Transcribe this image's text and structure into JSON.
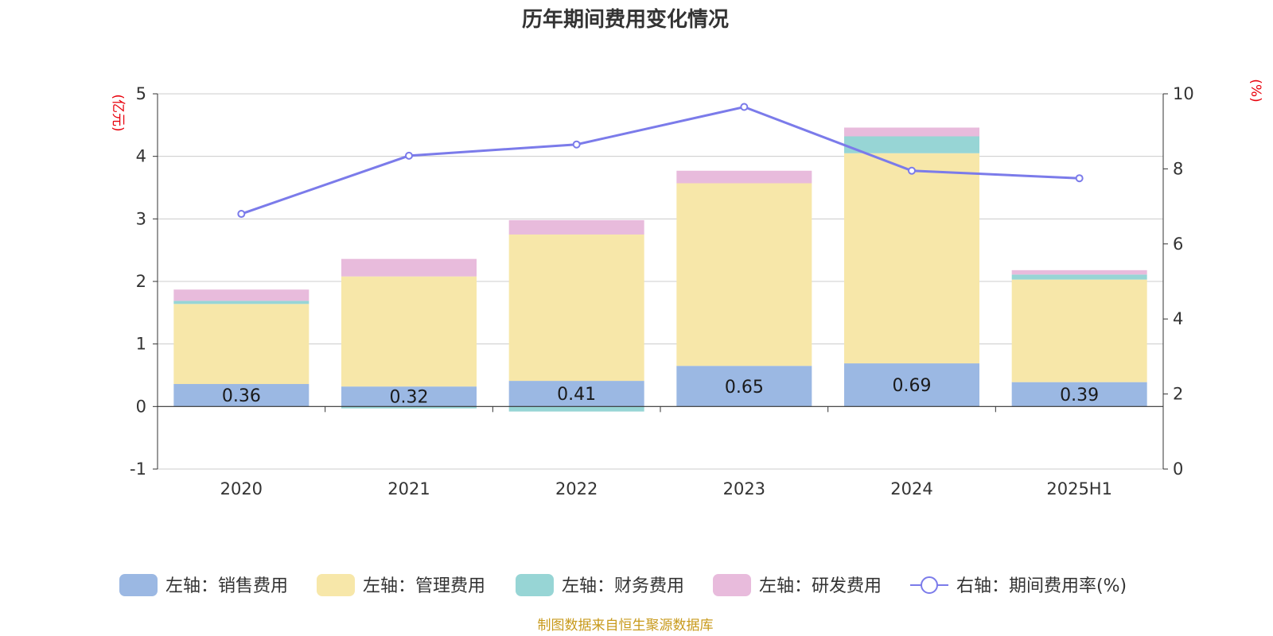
{
  "chart_data": {
    "type": "bar",
    "title": "历年期间费用变化情况",
    "categories": [
      "2020",
      "2021",
      "2022",
      "2023",
      "2024",
      "2025H1"
    ],
    "left_axis": {
      "unit": "(亿元)",
      "ylim": [
        -1,
        5
      ],
      "ticks": [
        -1,
        0,
        1,
        2,
        3,
        4,
        5
      ]
    },
    "right_axis": {
      "unit": "(%)",
      "ylim": [
        0,
        10
      ],
      "ticks": [
        0,
        2,
        4,
        6,
        8,
        10
      ]
    },
    "series": [
      {
        "name": "左轴：销售费用",
        "type": "bar",
        "stack": "left",
        "color": "#9bb8e3",
        "values": [
          0.36,
          0.32,
          0.41,
          0.65,
          0.69,
          0.39
        ],
        "labels": [
          "0.36",
          "0.32",
          "0.41",
          "0.65",
          "0.69",
          "0.39"
        ]
      },
      {
        "name": "左轴：管理费用",
        "type": "bar",
        "stack": "left",
        "color": "#f7e7a9",
        "values": [
          1.28,
          1.76,
          2.34,
          2.92,
          3.36,
          1.64
        ]
      },
      {
        "name": "左轴：财务费用",
        "type": "bar",
        "stack": "left",
        "color": "#97d5d5",
        "values": [
          0.05,
          -0.03,
          -0.08,
          0.0,
          0.27,
          0.08
        ]
      },
      {
        "name": "左轴：研发费用",
        "type": "bar",
        "stack": "left",
        "color": "#e8bbdc",
        "values": [
          0.18,
          0.28,
          0.23,
          0.2,
          0.14,
          0.07
        ]
      },
      {
        "name": "右轴：期间费用率(%)",
        "type": "line",
        "axis": "right",
        "color": "#7b7bea",
        "values": [
          6.8,
          8.35,
          8.65,
          9.65,
          7.95,
          7.75
        ]
      }
    ],
    "grid": true,
    "legend_position": "bottom"
  },
  "source": "制图数据来自恒生聚源数据库"
}
